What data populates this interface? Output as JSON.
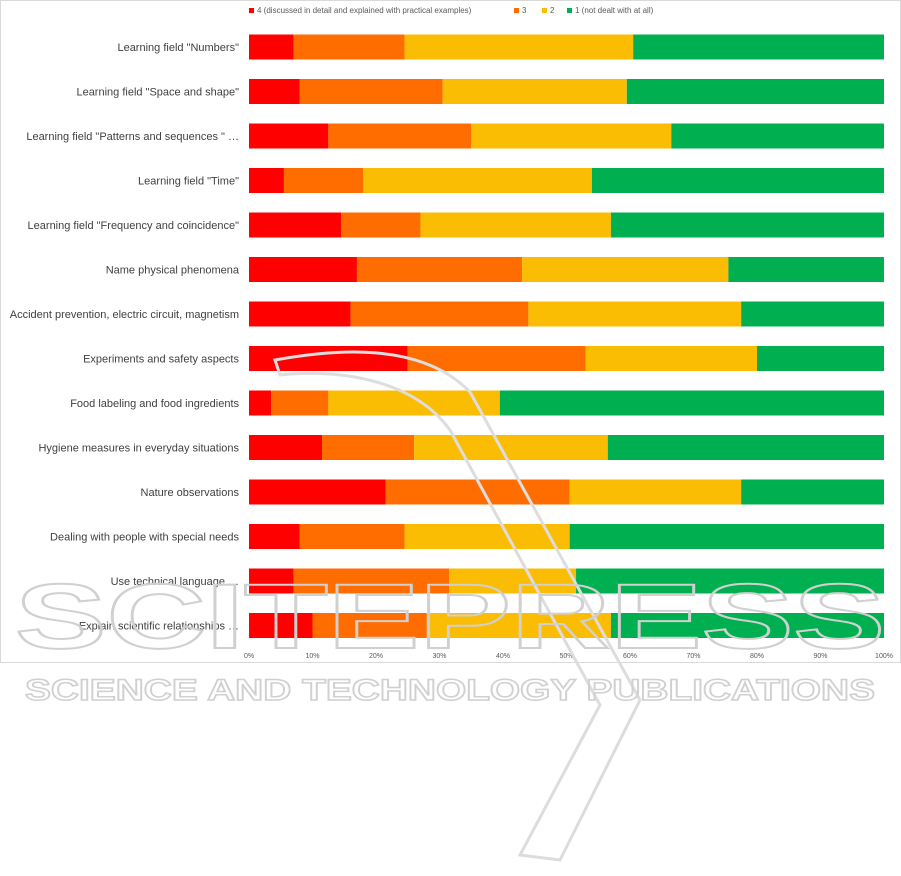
{
  "chart_data": {
    "type": "bar",
    "orientation": "horizontal",
    "stacked": "percent",
    "categories": [
      "Learning field \"Numbers\"",
      "Learning field \"Space and shape\"",
      "Learning field \"Patterns and sequences \" …",
      "Learning field \"Time\"",
      "Learning field \"Frequency and coincidence\"",
      "Name physical phenomena",
      "Accident prevention, electric circuit, magnetism",
      "Experiments and safety aspects",
      "Food labeling and food ingredients",
      "Hygiene measures in everyday situations",
      "Nature observations",
      "Dealing with people with special needs",
      "Use technical language …",
      "Explain scientific relationships …"
    ],
    "series": [
      {
        "name": "4  (discussed in detail and explained with practical examples)",
        "color": "#ff0000",
        "values": [
          7,
          8,
          12.5,
          5.5,
          14.5,
          17,
          16,
          25,
          3.5,
          11.5,
          21.5,
          8,
          7,
          10
        ]
      },
      {
        "name": "3",
        "color": "#ff6d01",
        "values": [
          17.5,
          22.5,
          22.5,
          12.5,
          12.5,
          26,
          28,
          28,
          9,
          14.5,
          29,
          16.5,
          24.5,
          18
        ]
      },
      {
        "name": "2",
        "color": "#fbbc04",
        "values": [
          36,
          29,
          31.5,
          36,
          30,
          32.5,
          33.5,
          27,
          27,
          30.5,
          27,
          26,
          20,
          29
        ]
      },
      {
        "name": "1 (not dealt with at all)",
        "color": "#00b050",
        "values": [
          39.5,
          40.5,
          33.5,
          46,
          43,
          24.5,
          22.5,
          20,
          60.5,
          43.5,
          22.5,
          49.5,
          48.5,
          43
        ]
      }
    ],
    "xlim": [
      0,
      100
    ],
    "xticks": [
      "0%",
      "10%",
      "20%",
      "30%",
      "40%",
      "50%",
      "60%",
      "70%",
      "80%",
      "90%",
      "100%"
    ],
    "legend_position": "top",
    "grid": false
  },
  "watermark": {
    "line1": "SCITEPRESS",
    "line2": "SCIENCE AND TECHNOLOGY PUBLICATIONS"
  }
}
